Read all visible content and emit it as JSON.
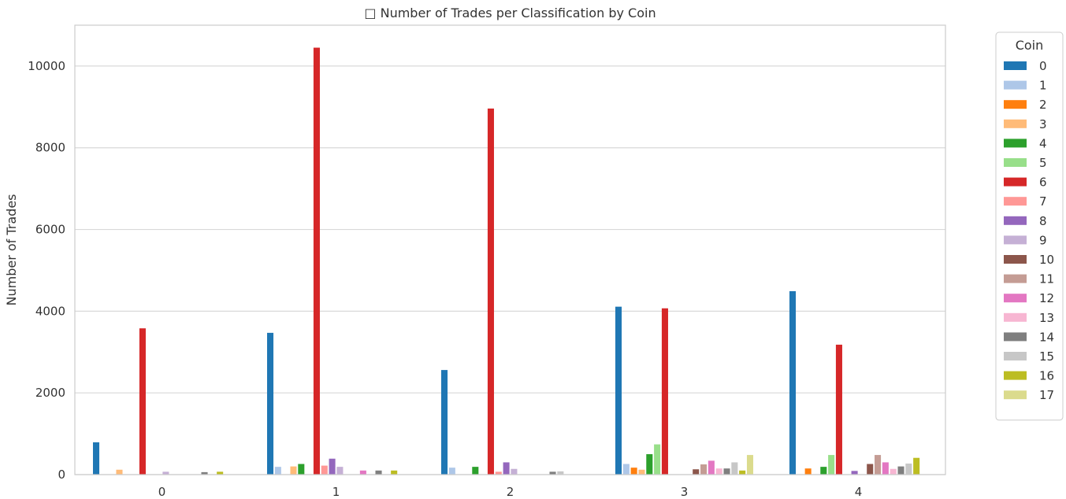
{
  "chart_data": {
    "type": "bar",
    "title": "□ Number of Trades per Classification by Coin",
    "xlabel": "",
    "ylabel": "Number of Trades",
    "categories": [
      "0",
      "1",
      "2",
      "3",
      "4"
    ],
    "ylim": [
      0,
      11000
    ],
    "yticks": [
      0,
      2000,
      4000,
      6000,
      8000,
      10000
    ],
    "grid": true,
    "legend_title": "Coin",
    "legend_position": "outside-right",
    "series": [
      {
        "name": "0",
        "color": "#1f77b4",
        "values": [
          790,
          3470,
          2560,
          4110,
          4490
        ]
      },
      {
        "name": "1",
        "color": "#aec7e8",
        "values": [
          0,
          190,
          170,
          260,
          0
        ]
      },
      {
        "name": "2",
        "color": "#ff7f0e",
        "values": [
          0,
          0,
          0,
          170,
          150
        ]
      },
      {
        "name": "3",
        "color": "#ffbb78",
        "values": [
          120,
          200,
          0,
          120,
          0
        ]
      },
      {
        "name": "4",
        "color": "#2ca02c",
        "values": [
          0,
          260,
          190,
          500,
          190
        ]
      },
      {
        "name": "5",
        "color": "#98df8a",
        "values": [
          0,
          0,
          0,
          740,
          480
        ]
      },
      {
        "name": "6",
        "color": "#d62728",
        "values": [
          3580,
          10450,
          8960,
          4070,
          3180
        ]
      },
      {
        "name": "7",
        "color": "#ff9896",
        "values": [
          0,
          220,
          70,
          0,
          0
        ]
      },
      {
        "name": "8",
        "color": "#9467bd",
        "values": [
          0,
          390,
          300,
          0,
          90
        ]
      },
      {
        "name": "9",
        "color": "#c5b0d5",
        "values": [
          70,
          190,
          140,
          0,
          0
        ]
      },
      {
        "name": "10",
        "color": "#8c564b",
        "values": [
          0,
          0,
          0,
          130,
          260
        ]
      },
      {
        "name": "11",
        "color": "#c49c94",
        "values": [
          0,
          0,
          0,
          250,
          480
        ]
      },
      {
        "name": "12",
        "color": "#e377c2",
        "values": [
          0,
          100,
          0,
          340,
          300
        ]
      },
      {
        "name": "13",
        "color": "#f7b6d2",
        "values": [
          0,
          0,
          0,
          150,
          140
        ]
      },
      {
        "name": "14",
        "color": "#7f7f7f",
        "values": [
          60,
          100,
          70,
          150,
          200
        ]
      },
      {
        "name": "15",
        "color": "#c7c7c7",
        "values": [
          0,
          0,
          80,
          300,
          270
        ]
      },
      {
        "name": "16",
        "color": "#bcbd22",
        "values": [
          70,
          100,
          0,
          100,
          410
        ]
      },
      {
        "name": "17",
        "color": "#dbdb8d",
        "values": [
          0,
          0,
          0,
          480,
          0
        ]
      }
    ]
  }
}
